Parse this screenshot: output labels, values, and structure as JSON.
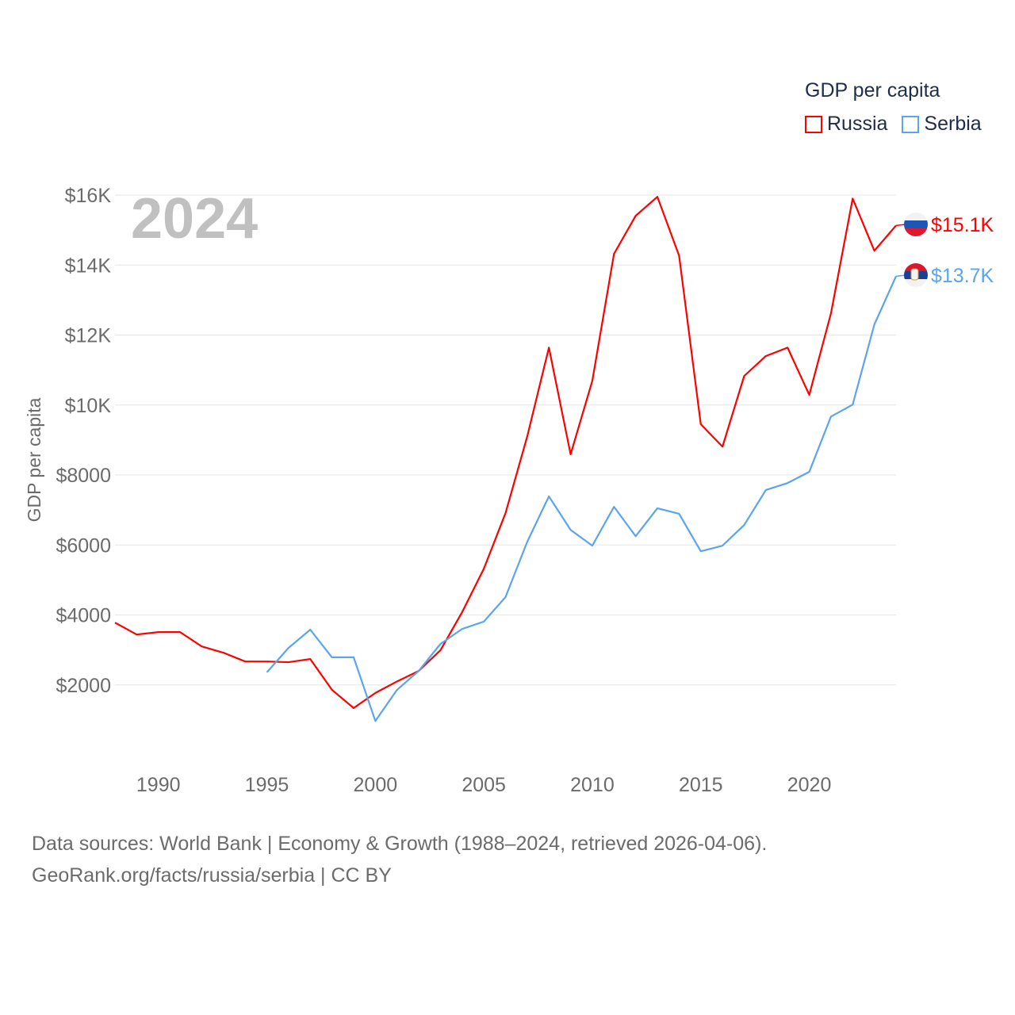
{
  "chart_data": {
    "type": "line",
    "title": "GDP per capita",
    "ylabel": "GDP per capita",
    "xlabel": "",
    "year_label": "2024",
    "ylim": [
      0,
      16500
    ],
    "xlim": [
      1988,
      2024
    ],
    "yticks": [
      2000,
      4000,
      6000,
      8000,
      10000,
      12000,
      14000,
      16000
    ],
    "ytick_labels": [
      "$2000",
      "$4000",
      "$6000",
      "$8000",
      "$10K",
      "$12K",
      "$14K",
      "$16K"
    ],
    "xticks": [
      1990,
      1995,
      2000,
      2005,
      2010,
      2015,
      2020
    ],
    "xtick_labels": [
      "1990",
      "1995",
      "2000",
      "2005",
      "2010",
      "2015",
      "2020"
    ],
    "grid": true,
    "legend_placement": "top-right",
    "series": [
      {
        "name": "Russia",
        "color": "#ff0000",
        "end_label": "$15.1K",
        "start_year": 1988,
        "values": [
          3780,
          3440,
          3510,
          3510,
          3100,
          2920,
          2670,
          2670,
          2650,
          2740,
          1860,
          1340,
          1770,
          2100,
          2400,
          2990,
          4080,
          5320,
          6910,
          9100,
          11640,
          8590,
          10690,
          14320,
          15410,
          15950,
          14270,
          9450,
          8810,
          10830,
          11400,
          11640,
          10290,
          12620,
          15900,
          14410,
          15130
        ]
      },
      {
        "name": "Serbia",
        "color": "#5ba4ef",
        "end_label": "$13.7K",
        "start_year": 1995,
        "values": [
          2360,
          3060,
          3580,
          2790,
          2790,
          970,
          1860,
          2400,
          3170,
          3600,
          3810,
          4510,
          6090,
          7390,
          6430,
          5980,
          7090,
          6250,
          7050,
          6890,
          5820,
          5980,
          6570,
          7570,
          7770,
          8090,
          9670,
          10010,
          12300,
          13680
        ]
      }
    ]
  },
  "legend": {
    "title": "GDP per capita",
    "items": [
      "Russia",
      "Serbia"
    ]
  },
  "footer": {
    "line1": "Data sources: World Bank | Economy & Growth (1988–2024, retrieved 2026-04-06).",
    "line2": "GeoRank.org/facts/russia/serbia | CC BY"
  }
}
